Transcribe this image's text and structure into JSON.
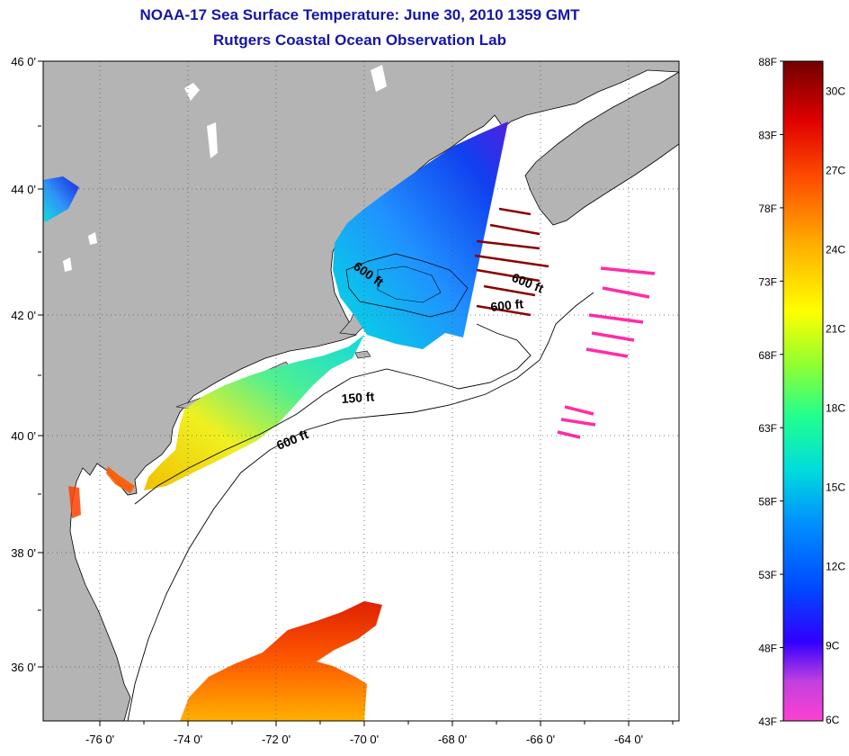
{
  "title": {
    "line1": "NOAA-17 Sea Surface Temperature:  June 30, 2010 1359 GMT",
    "line2": "Rutgers Coastal Ocean Observation Lab",
    "color": "#1515a8"
  },
  "map": {
    "land_color": "#b4b4b4",
    "ocean_color": "#ffffff",
    "lat_labels": [
      "46 0'",
      "44 0'",
      "42 0'",
      "40 0'",
      "38 0'",
      "36 0'"
    ],
    "lon_labels": [
      "-76 0'",
      "-74 0'",
      "-72 0'",
      "-70 0'",
      "-68 0'",
      "-66 0'",
      "-64 0'"
    ],
    "depth_labels": [
      "600 ft",
      "600 ft",
      "600 ft",
      "150 ft",
      "600 ft"
    ]
  },
  "colorbar": {
    "f_labels": [
      "88F",
      "83F",
      "78F",
      "73F",
      "68F",
      "63F",
      "58F",
      "53F",
      "48F",
      "43F"
    ],
    "c_labels": [
      "30C",
      "27C",
      "24C",
      "21C",
      "18C",
      "15C",
      "12C",
      "9C",
      "6C"
    ],
    "range_f": [
      43,
      88
    ],
    "range_c": [
      6,
      31
    ]
  }
}
